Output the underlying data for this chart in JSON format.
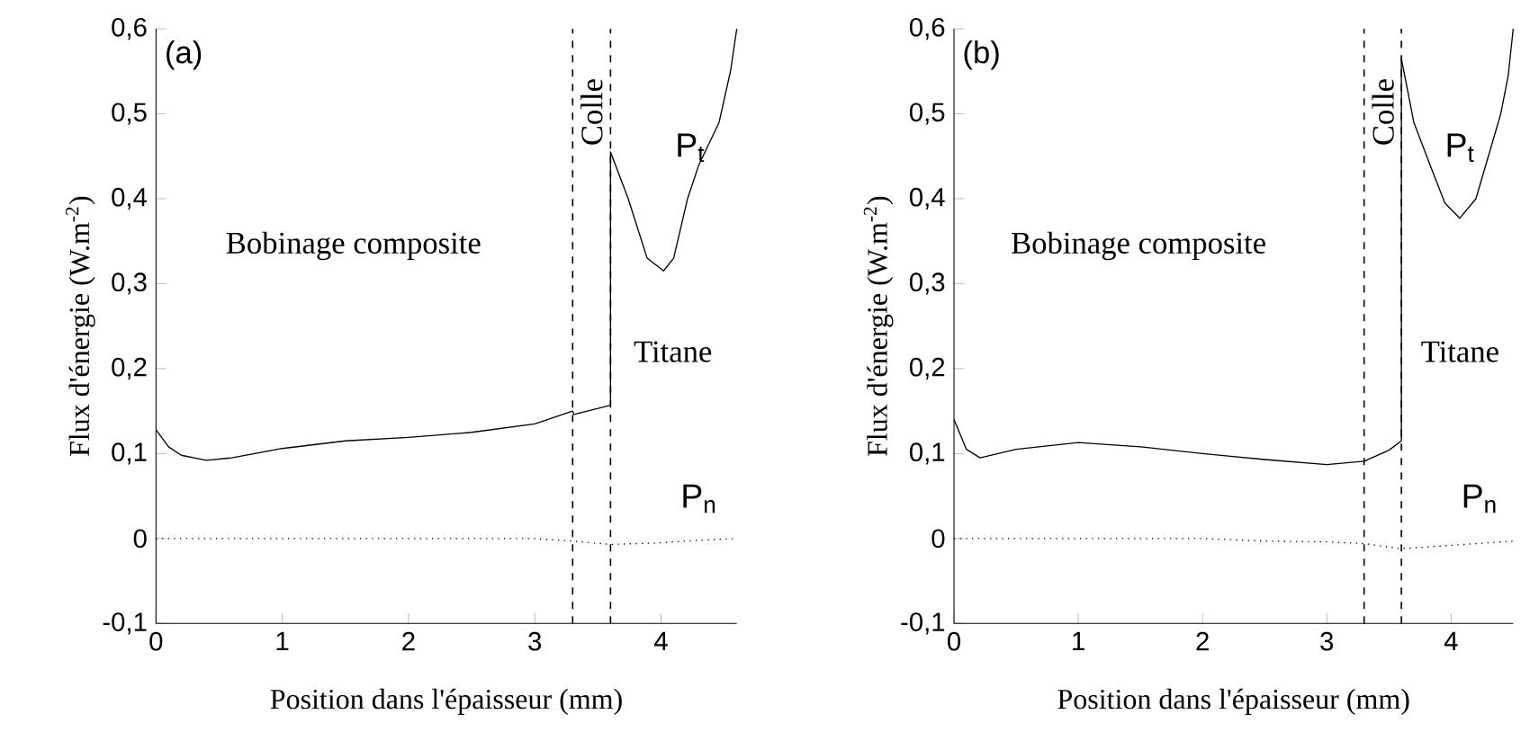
{
  "chart_data": [
    {
      "type": "line",
      "xlabel": "Position dans l'épaisseur (mm)",
      "ylabel": "Flux d'énergie (W.m$^{-2}$)",
      "annotations": [
        "(a)",
        "Bobinage composite",
        "Colle",
        "Titane"
      ],
      "xlim": [
        0,
        4.6
      ],
      "xticks": [
        0,
        1,
        2,
        3,
        4
      ],
      "ylim": [
        -0.1,
        0.6
      ],
      "yticks": [
        {
          "value": -0.1,
          "label": "-0,1"
        },
        0,
        {
          "value": 0.1,
          "label": "0,1"
        },
        {
          "value": 0.2,
          "label": "0,2"
        },
        {
          "value": 0.3,
          "label": "0,3"
        },
        {
          "value": 0.4,
          "label": "0,4"
        },
        {
          "value": 0.5,
          "label": "0,5"
        },
        {
          "value": 0.6,
          "label": "0,6"
        }
      ],
      "grid": false,
      "marker": "none",
      "ref_lines": [
        {
          "axis": "x",
          "value": 3.3,
          "color": "#000000",
          "line_style": "dashed"
        },
        {
          "axis": "x",
          "value": 3.6,
          "color": "#000000",
          "line_style": "dashed"
        }
      ],
      "series": [
        {
          "name": "P$_{t}$",
          "color": "#000000",
          "line_style": "solid",
          "x": [
            0,
            0.1,
            0.2,
            0.4,
            0.6,
            1,
            1.5,
            2,
            2.5,
            3,
            3.3,
            3.31,
            3.6,
            3.6,
            3.74,
            3.89,
            4.02,
            4.1,
            4.21,
            4.3,
            4.46,
            4.55,
            4.6
          ],
          "values": [
            0.128,
            0.108,
            0.098,
            0.092,
            0.095,
            0.106,
            0.115,
            0.119,
            0.125,
            0.135,
            0.15,
            0.146,
            0.157,
            0.455,
            0.4,
            0.33,
            0.315,
            0.33,
            0.4,
            0.44,
            0.49,
            0.55,
            0.6
          ]
        },
        {
          "name": "P$_{n}$",
          "color": "#000000",
          "line_style": "dotted",
          "x": [
            0,
            1,
            2,
            3,
            3.3,
            3.6,
            4,
            4.3,
            4.6
          ],
          "values": [
            0,
            0,
            0,
            0,
            -0.003,
            -0.007,
            -0.005,
            -0.002,
            0
          ]
        }
      ]
    },
    {
      "type": "line",
      "xlabel": "Position dans l'épaisseur (mm)",
      "ylabel": "Flux d'énergie (W.m$^{-2}$)",
      "annotations": [
        "(b)",
        "Bobinage composite",
        "Colle",
        "Titane"
      ],
      "xlim": [
        0,
        4.5
      ],
      "xticks": [
        0,
        1,
        2,
        3,
        4
      ],
      "ylim": [
        -0.1,
        0.6
      ],
      "yticks": [
        {
          "value": -0.1,
          "label": "-0,1"
        },
        0,
        {
          "value": 0.1,
          "label": "0,1"
        },
        {
          "value": 0.2,
          "label": "0,2"
        },
        {
          "value": 0.3,
          "label": "0,3"
        },
        {
          "value": 0.4,
          "label": "0,4"
        },
        {
          "value": 0.5,
          "label": "0,5"
        },
        {
          "value": 0.6,
          "label": "0,6"
        }
      ],
      "grid": false,
      "marker": "none",
      "ref_lines": [
        {
          "axis": "x",
          "value": 3.3,
          "color": "#000000",
          "line_style": "dashed"
        },
        {
          "axis": "x",
          "value": 3.6,
          "color": "#000000",
          "line_style": "dashed"
        }
      ],
      "series": [
        {
          "name": "P$_{t}$",
          "color": "#000000",
          "line_style": "solid",
          "x": [
            0,
            0.1,
            0.21,
            0.5,
            1,
            1.5,
            2,
            2.5,
            3,
            3.3,
            3.5,
            3.6,
            3.6,
            3.7,
            3.83,
            3.95,
            4.07,
            4.2,
            4.3,
            4.4,
            4.46,
            4.5
          ],
          "values": [
            0.14,
            0.105,
            0.095,
            0.105,
            0.113,
            0.108,
            0.1,
            0.093,
            0.087,
            0.091,
            0.104,
            0.115,
            0.565,
            0.49,
            0.44,
            0.395,
            0.377,
            0.4,
            0.45,
            0.5,
            0.545,
            0.6
          ]
        },
        {
          "name": "P$_{n}$",
          "color": "#000000",
          "line_style": "dotted",
          "x": [
            0,
            1,
            2,
            2.5,
            3,
            3.3,
            3.6,
            4,
            4.5
          ],
          "values": [
            0,
            0,
            0,
            -0.003,
            -0.004,
            -0.006,
            -0.012,
            -0.008,
            -0.003
          ]
        }
      ]
    }
  ]
}
